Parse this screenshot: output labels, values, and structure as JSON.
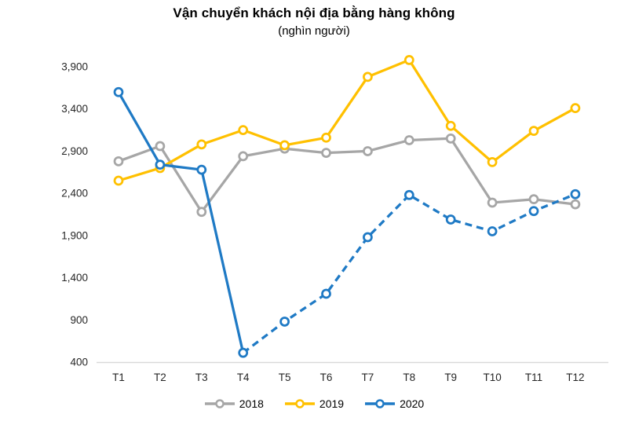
{
  "chart_data": {
    "type": "line",
    "title": "Vận chuyển khách nội địa bằng hàng không",
    "subtitle": "(nghìn người)",
    "categories": [
      "T1",
      "T2",
      "T3",
      "T4",
      "T5",
      "T6",
      "T7",
      "T8",
      "T9",
      "T10",
      "T11",
      "T12"
    ],
    "series": [
      {
        "name": "2018",
        "color": "#A6A6A6",
        "style": "solid",
        "values": [
          2780,
          2960,
          2180,
          2840,
          2930,
          2880,
          2900,
          3030,
          3050,
          2290,
          2330,
          2270
        ]
      },
      {
        "name": "2019",
        "color": "#FFC000",
        "style": "solid",
        "values": [
          2550,
          2700,
          2980,
          3150,
          2970,
          3060,
          3780,
          3980,
          3200,
          2770,
          3140,
          3410
        ]
      },
      {
        "name": "2020",
        "color": "#1F7AC5",
        "style": "solid-then-dashed",
        "dash_from_index": 3,
        "values": [
          3600,
          2740,
          2680,
          510,
          880,
          1210,
          1880,
          2380,
          2090,
          1950,
          2190,
          2390
        ]
      }
    ],
    "xlabel": "",
    "ylabel": "",
    "ylim": [
      400,
      3900
    ],
    "y_ticks": [
      400,
      900,
      1400,
      1900,
      2400,
      2900,
      3400,
      3900
    ],
    "y_tick_labels": [
      "400",
      "900",
      "1,400",
      "1,900",
      "2,400",
      "2,900",
      "3,400",
      "3,900"
    ],
    "grid": false,
    "legend_position": "bottom",
    "marker": "open-circle",
    "axis_line_color": "#D9D9D9"
  }
}
